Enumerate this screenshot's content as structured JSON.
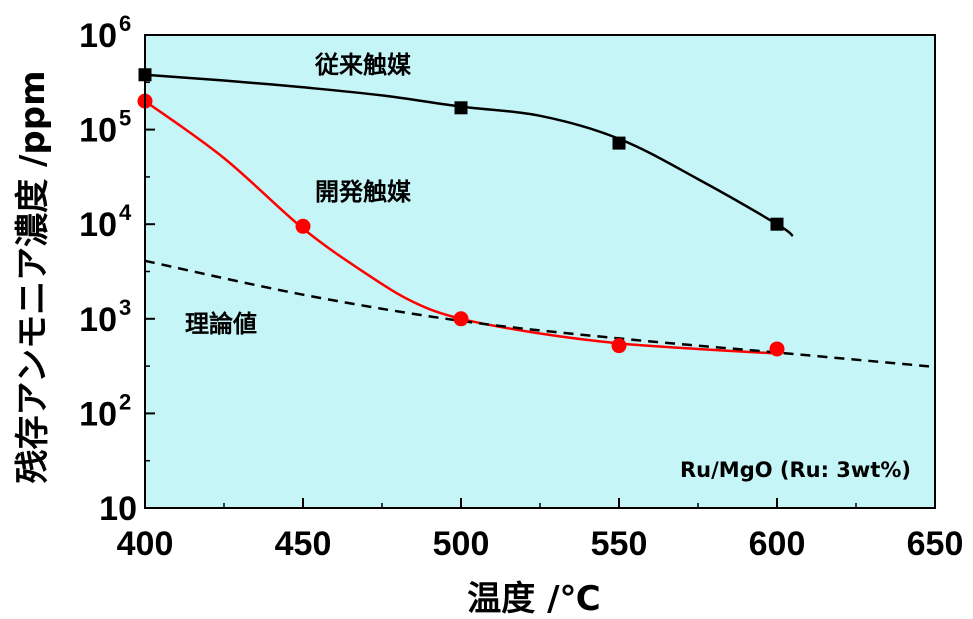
{
  "chart_data": {
    "type": "line",
    "xlabel": "温度 /℃",
    "ylabel": "残存アンモニア濃度 /ppm",
    "x_scale": "linear",
    "y_scale": "log",
    "xlim": [
      400,
      650
    ],
    "ylim": [
      10,
      1000000
    ],
    "x_ticks": [
      "400",
      "450",
      "500",
      "550",
      "600",
      "650"
    ],
    "y_ticks": [
      {
        "base": "10",
        "exp": "6"
      },
      {
        "base": "10",
        "exp": "5"
      },
      {
        "base": "10",
        "exp": "4"
      },
      {
        "base": "10",
        "exp": "3"
      },
      {
        "base": "10",
        "exp": "2"
      },
      {
        "base": "10",
        "exp": ""
      }
    ],
    "background_color": "#c6f5f7",
    "series": [
      {
        "name": "従来触媒",
        "color": "#000000",
        "marker": "square",
        "x": [
          400,
          500,
          550,
          600
        ],
        "y": [
          380000,
          170000,
          72000,
          10000
        ],
        "fit_curve": {
          "x": [
            400,
            425,
            450,
            475,
            500,
            525,
            550,
            575,
            600,
            605
          ],
          "y": [
            380000,
            330000,
            280000,
            230000,
            175000,
            140000,
            80000,
            30000,
            10000,
            7500
          ]
        }
      },
      {
        "name": "開発触媒",
        "color": "#ff0000",
        "marker": "circle",
        "x": [
          400,
          450,
          500,
          550,
          600
        ],
        "y": [
          200000,
          9500,
          1000,
          520,
          480
        ],
        "fit_curve": {
          "x": [
            400,
            425,
            450,
            470,
            485,
            500,
            525,
            550,
            575,
            600
          ],
          "y": [
            200000,
            50000,
            9000,
            3000,
            1500,
            1000,
            700,
            550,
            480,
            430
          ]
        }
      },
      {
        "name": "理論値",
        "color": "#000000",
        "line_style": "dashed",
        "x": [
          400,
          450,
          500,
          550,
          600,
          650
        ],
        "y": [
          4100,
          1800,
          950,
          620,
          440,
          310
        ]
      }
    ],
    "annotations": {
      "conventional": "従来触媒",
      "developed": "開発触媒",
      "theory": "理論値",
      "catalyst": "Ru/MgO (Ru: 3wt%)"
    }
  }
}
